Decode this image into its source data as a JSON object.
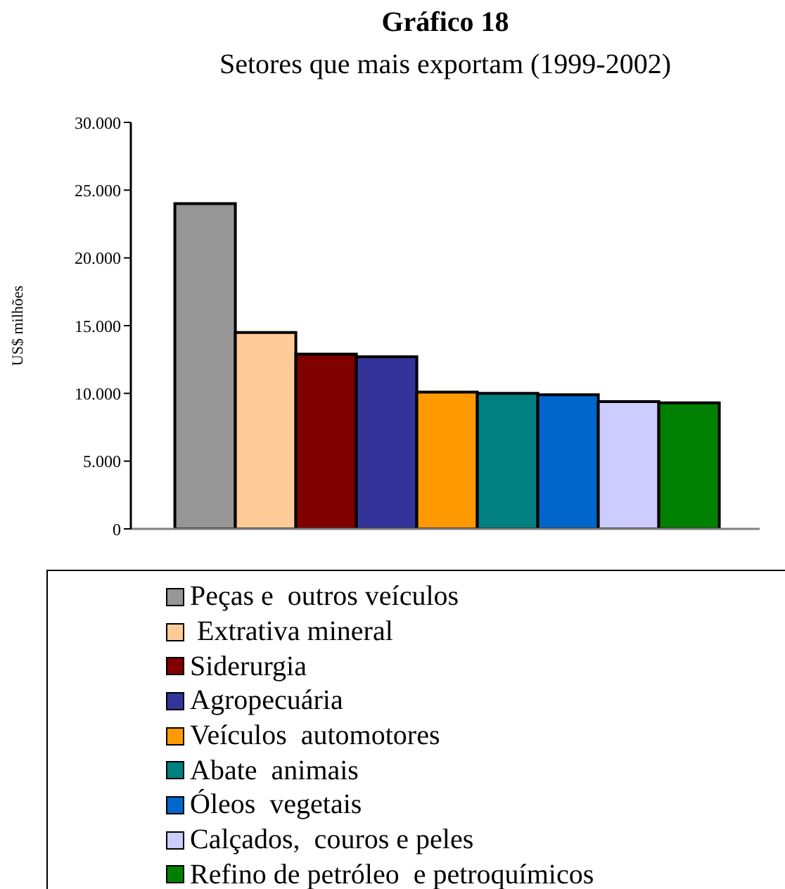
{
  "chart_data": {
    "type": "bar",
    "title": "Gráfico 18",
    "subtitle": "Setores que mais exportam (1999-2002)",
    "ylabel": "US$ milhões",
    "categories": [
      null
    ],
    "series": [
      {
        "name": "Peças e  outros veículos",
        "color": "#969696",
        "values": [
          24000
        ]
      },
      {
        "name": " Extrativa mineral",
        "color": "#ffcc99",
        "values": [
          14500
        ]
      },
      {
        "name": "Siderurgia",
        "color": "#800000",
        "values": [
          12900
        ]
      },
      {
        "name": "Agropecuária",
        "color": "#333399",
        "values": [
          12700
        ]
      },
      {
        "name": "Veículos  automotores",
        "color": "#ff9900",
        "values": [
          10100
        ]
      },
      {
        "name": "Abate  animais",
        "color": "#008080",
        "values": [
          10000
        ]
      },
      {
        "name": "Óleos  vegetais",
        "color": "#0066cc",
        "values": [
          9900
        ]
      },
      {
        "name": "Calçados,  couros e peles",
        "color": "#ccccff",
        "values": [
          9400
        ]
      },
      {
        "name": "Refino de petróleo  e petroquímicos",
        "color": "#008000",
        "values": [
          9300
        ]
      }
    ],
    "ylim": [
      0,
      30000
    ],
    "yticks": [
      0,
      {
        "value": 5000,
        "label": "5.000"
      },
      {
        "value": 10000,
        "label": "10.000"
      },
      {
        "value": 15000,
        "label": "15.000"
      },
      {
        "value": 20000,
        "label": "20.000"
      },
      {
        "value": 25000,
        "label": "25.000"
      },
      {
        "value": 30000,
        "label": "30.000"
      }
    ],
    "tick_labels": "y",
    "legend": "bottom"
  }
}
